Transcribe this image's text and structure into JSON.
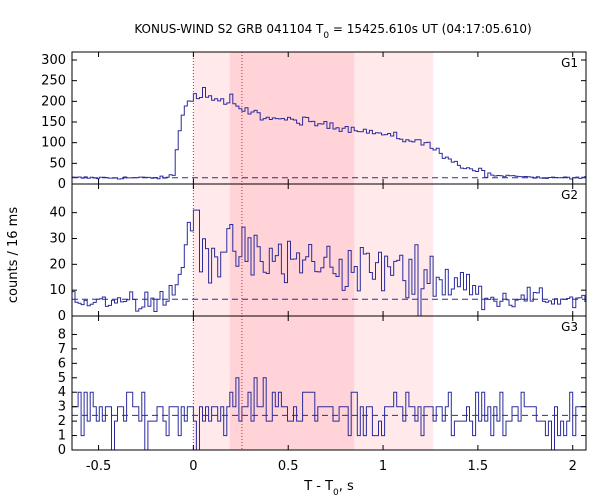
{
  "chart_data": {
    "type": "line",
    "title_prefix": "KONUS-WIND S2 GRB 041104 T",
    "title_sub": "0",
    "title_suffix": " = 15425.610s UT (04:17:05.610)",
    "xlabel_prefix": "T - T",
    "xlabel_sub": "0",
    "xlabel_suffix": ", s",
    "ylabel": "counts / 16 ms",
    "xlim": [
      -0.64,
      2.07
    ],
    "x_ticks": [
      -0.5,
      0,
      0.5,
      1,
      1.5,
      2
    ],
    "x_tick_labels": [
      "-0.5",
      "0",
      "0.5",
      "1",
      "1.5",
      "2"
    ],
    "bin_width_s": 0.016,
    "shaded_intervals": [
      {
        "x0": 0.0,
        "x1": 1.264,
        "level": "light"
      },
      {
        "x0": 0.192,
        "x1": 0.848,
        "level": "medium"
      }
    ],
    "vertical_markers": [
      0.0,
      0.256
    ],
    "colors": {
      "series": "#2b2b9e",
      "shade_light": "#ffe9ea",
      "shade_medium": "#ffd3d7",
      "marker": "#b03030"
    },
    "panels": [
      {
        "label": "G1",
        "ylim": [
          0,
          300
        ],
        "y_ticks": [
          0,
          50,
          100,
          150,
          200,
          250,
          300
        ],
        "background_level": 15,
        "noise": 3,
        "profile": [
          {
            "t": -0.64,
            "v": 15
          },
          {
            "t": -0.14,
            "v": 15
          },
          {
            "t": -0.1,
            "v": 25
          },
          {
            "t": -0.08,
            "v": 120
          },
          {
            "t": -0.05,
            "v": 175
          },
          {
            "t": -0.02,
            "v": 205
          },
          {
            "t": 0.1,
            "v": 210
          },
          {
            "t": 0.25,
            "v": 180
          },
          {
            "t": 0.4,
            "v": 160
          },
          {
            "t": 0.6,
            "v": 150
          },
          {
            "t": 0.9,
            "v": 130
          },
          {
            "t": 1.1,
            "v": 110
          },
          {
            "t": 1.25,
            "v": 95
          },
          {
            "t": 1.3,
            "v": 80
          },
          {
            "t": 1.36,
            "v": 55
          },
          {
            "t": 1.45,
            "v": 35
          },
          {
            "t": 1.6,
            "v": 20
          },
          {
            "t": 1.8,
            "v": 15
          },
          {
            "t": 2.07,
            "v": 15
          }
        ]
      },
      {
        "label": "G2",
        "ylim": [
          0,
          48
        ],
        "y_ticks": [
          0,
          10,
          20,
          30,
          40
        ],
        "background_level": 6.5,
        "noise": 3.5,
        "profile": [
          {
            "t": -0.64,
            "v": 6.5
          },
          {
            "t": -0.14,
            "v": 6.5
          },
          {
            "t": -0.08,
            "v": 15
          },
          {
            "t": -0.03,
            "v": 28
          },
          {
            "t": 0.0,
            "v": 35
          },
          {
            "t": 0.05,
            "v": 27
          },
          {
            "t": 0.2,
            "v": 24
          },
          {
            "t": 0.4,
            "v": 22
          },
          {
            "t": 0.7,
            "v": 20
          },
          {
            "t": 1.0,
            "v": 18
          },
          {
            "t": 1.3,
            "v": 15
          },
          {
            "t": 1.45,
            "v": 10
          },
          {
            "t": 1.6,
            "v": 7
          },
          {
            "t": 2.07,
            "v": 6.5
          }
        ]
      },
      {
        "label": "G3",
        "ylim": [
          0,
          9
        ],
        "y_ticks": [
          0,
          1,
          2,
          3,
          4,
          5,
          6,
          7,
          8
        ],
        "background_level": 2.4,
        "noise": 1.8,
        "profile": [
          {
            "t": -0.64,
            "v": 2.4
          },
          {
            "t": 0.0,
            "v": 2.6
          },
          {
            "t": 0.4,
            "v": 3.2
          },
          {
            "t": 0.8,
            "v": 2.6
          },
          {
            "t": 1.3,
            "v": 2.4
          },
          {
            "t": 2.07,
            "v": 2.4
          }
        ]
      }
    ]
  }
}
